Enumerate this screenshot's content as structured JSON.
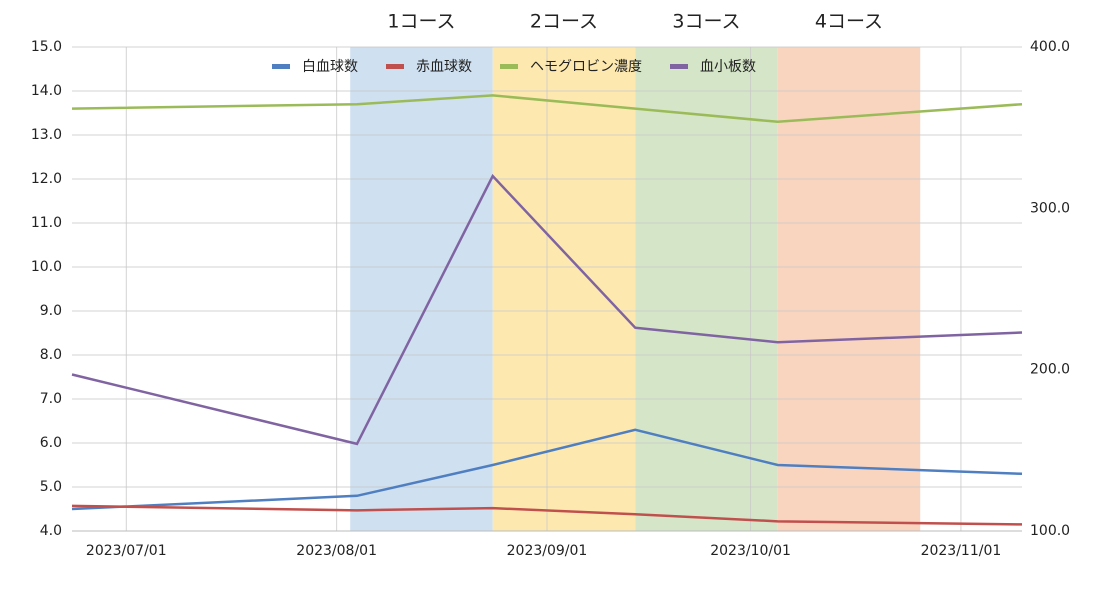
{
  "chart_data": {
    "type": "line",
    "x": [
      "2023/06/23",
      "2023/08/04",
      "2023/08/24",
      "2023/09/14",
      "2023/10/05",
      "2023/11/10"
    ],
    "xlim": [
      "2023/06/23",
      "2023/11/10"
    ],
    "xticks": [
      "2023/07/01",
      "2023/08/01",
      "2023/09/01",
      "2023/10/01",
      "2023/11/01"
    ],
    "ylim": [
      4,
      15
    ],
    "yticks": [
      {
        "value": 4,
        "label": "4.0"
      },
      {
        "value": 5,
        "label": "5.0"
      },
      {
        "value": 6,
        "label": "6.0"
      },
      {
        "value": 7,
        "label": "7.0"
      },
      {
        "value": 8,
        "label": "8.0"
      },
      {
        "value": 9,
        "label": "9.0"
      },
      {
        "value": 10,
        "label": "10.0"
      },
      {
        "value": 11,
        "label": "11.0"
      },
      {
        "value": 12,
        "label": "12.0"
      },
      {
        "value": 13,
        "label": "13.0"
      },
      {
        "value": 14,
        "label": "14.0"
      },
      {
        "value": 15,
        "label": "15.0"
      }
    ],
    "y2lim": [
      100,
      400
    ],
    "y2ticks": [
      {
        "value": 100,
        "label": "100.0"
      },
      {
        "value": 200,
        "label": "200.0"
      },
      {
        "value": 300,
        "label": "300.0"
      },
      {
        "value": 400,
        "label": "400.0"
      }
    ],
    "grid": true,
    "legend": "top",
    "bands": [
      {
        "label": "1コース",
        "start": "2023/08/03",
        "end": "2023/08/24",
        "color": "#cfe0f1"
      },
      {
        "label": "2コース",
        "start": "2023/08/24",
        "end": "2023/09/14",
        "color": "#fde9b0"
      },
      {
        "label": "3コース",
        "start": "2023/09/14",
        "end": "2023/10/05",
        "color": "#d5e6c8"
      },
      {
        "label": "4コース",
        "start": "2023/10/05",
        "end": "2023/10/26",
        "color": "#f9d5c0"
      }
    ],
    "series": [
      {
        "name": "白血球数",
        "color": "#4f7fc0",
        "values": [
          4.5,
          4.8,
          5.5,
          6.3,
          5.5,
          5.3
        ]
      },
      {
        "name": "赤血球数",
        "color": "#c0504d",
        "values": [
          4.57,
          4.47,
          4.52,
          4.38,
          4.22,
          4.15
        ]
      },
      {
        "name": "ヘモグロビン濃度",
        "color": "#9bbb59",
        "values": [
          13.6,
          13.7,
          13.9,
          13.6,
          13.3,
          13.7
        ]
      },
      {
        "name": "血小板数",
        "color": "#8064a2",
        "axis": "y2",
        "values": [
          197,
          154,
          320,
          226,
          217,
          223
        ]
      }
    ]
  }
}
